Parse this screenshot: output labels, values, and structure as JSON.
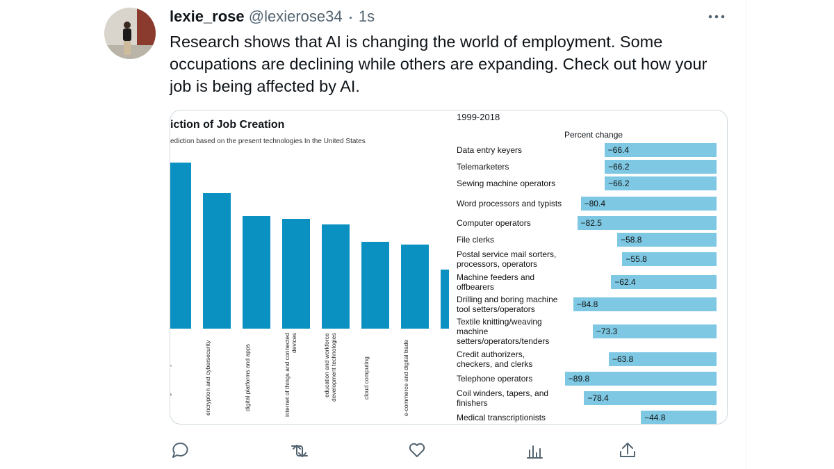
{
  "tweet": {
    "name": "lexie_rose",
    "handle": "@lexierose34",
    "time": "1s",
    "text": "Research shows that AI is changing the world of employment. Some occupations are declining while others are expanding. Check out how your job is being affected by AI."
  },
  "chart_data": [
    {
      "type": "bar",
      "title": "iction of Job Creation",
      "subtitle": "ediction based on the present technologies In the United States",
      "categories": [
        "Big-data analytics",
        "encryption and cybersecurity",
        "digital platforms and apps",
        "internet of things and connected devices",
        "education and workforce development technologies",
        "cloud computing",
        "e-commerce and digital trade",
        null
      ],
      "values": [
        100,
        81.6,
        67.8,
        66.1,
        62.8,
        52.3,
        50.6,
        35.6
      ],
      "ylim": [
        0,
        100
      ],
      "color": "#0b91c1"
    },
    {
      "type": "hbar",
      "title": "1999-2018",
      "subtitle": "Percent change",
      "categories": [
        "Data entry keyers",
        "Telemarketers",
        "Sewing machine operators",
        "Word processors and typists",
        "Computer operators",
        "File clerks",
        "Postal service mail sorters, processors, operators",
        "Machine feeders and offbearers",
        "Drilling and boring machine tool setters/operators",
        "Textile knitting/weaving machine setters/operators/tenders",
        "Credit authorizers, checkers, and clerks",
        "Telephone operators",
        "Coil winders, tapers, and finishers",
        "Medical transcriptionists"
      ],
      "values": [
        -66.4,
        -66.2,
        -66.2,
        -80.4,
        -82.5,
        -58.8,
        -55.8,
        -62.4,
        -84.8,
        -73.3,
        -63.8,
        -89.8,
        -78.4,
        -44.8
      ],
      "value_labels": [
        "−66.4",
        "−66.2",
        "−66.2",
        "−80.4",
        "−82.5",
        "−58.8",
        "−55.8",
        "−62.4",
        "−84.8",
        "−73.3",
        "−63.8",
        "−89.8",
        "−78.4",
        "−44.8"
      ],
      "color": "#7ec8e3"
    }
  ]
}
